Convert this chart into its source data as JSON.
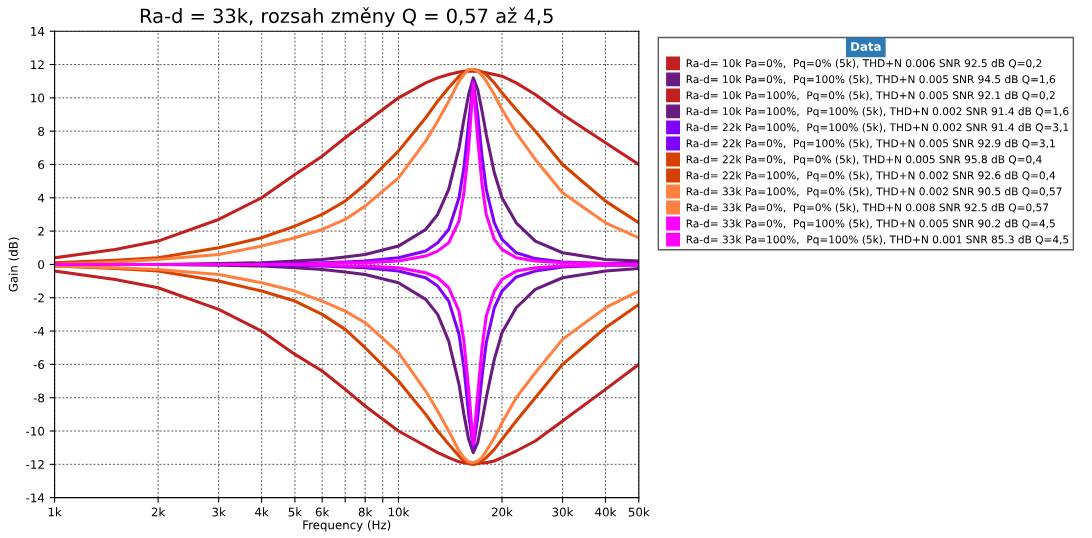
{
  "chart_data": {
    "type": "line",
    "title": "Ra-d = 33k, rozsah změny Q = 0,57 až 4,5",
    "xlabel": "Frequency (Hz)",
    "ylabel": "Gain (dB)",
    "legend_title": "Data",
    "legend": "right",
    "grid": true,
    "log": "x",
    "marker": "none",
    "line_style": "solid",
    "x": [
      1000,
      1500,
      2000,
      3000,
      4000,
      5000,
      6000,
      7000,
      8000,
      10000,
      12000,
      13000,
      14000,
      15000,
      15500,
      16000,
      16500,
      17000,
      17500,
      18000,
      19000,
      20000,
      22000,
      25000,
      30000,
      40000,
      50000
    ],
    "xlim": [
      1000,
      50000
    ],
    "xticks": [
      {
        "value": 1000,
        "label": "1k"
      },
      {
        "value": 2000,
        "label": "2k"
      },
      {
        "value": 3000,
        "label": "3k"
      },
      {
        "value": 4000,
        "label": "4k"
      },
      {
        "value": 5000,
        "label": "5k"
      },
      {
        "value": 6000,
        "label": "6k"
      },
      {
        "value": 7000,
        "label": null
      },
      {
        "value": 8000,
        "label": "8k"
      },
      {
        "value": 9000,
        "label": null
      },
      {
        "value": 10000,
        "label": "10k"
      },
      {
        "value": 20000,
        "label": "20k"
      },
      {
        "value": 30000,
        "label": "30k"
      },
      {
        "value": 40000,
        "label": "40k"
      },
      {
        "value": 50000,
        "label": "50k"
      }
    ],
    "ylim": [
      -14,
      14
    ],
    "yticks": [
      -14,
      -12,
      -10,
      -8,
      -6,
      -4,
      -2,
      0,
      2,
      4,
      6,
      8,
      10,
      12,
      14
    ],
    "series": [
      {
        "name": "Ra-d= 10k Pa=0%,  Pq=0% (5k), THD+N 0.006 SNR 92.5 dB Q=0,2",
        "color": "#c0201f",
        "values": [
          -0.4,
          -0.9,
          -1.4,
          -2.7,
          -4.0,
          -5.4,
          -6.4,
          -7.5,
          -8.5,
          -10.0,
          -10.9,
          -11.3,
          -11.6,
          -11.85,
          -11.9,
          -11.95,
          -12.0,
          -11.95,
          -11.9,
          -11.9,
          -11.8,
          -11.6,
          -11.2,
          -10.6,
          -9.4,
          -7.5,
          -6.0
        ]
      },
      {
        "name": "Ra-d= 10k Pa=0%,  Pq=100% (5k), THD+N 0.005 SNR 94.5 dB Q=1,6",
        "color": "#6a1b80",
        "values": [
          0,
          0,
          0,
          -0.05,
          -0.1,
          -0.2,
          -0.3,
          -0.45,
          -0.6,
          -1.1,
          -2.1,
          -3.0,
          -4.6,
          -7.2,
          -9.0,
          -10.5,
          -11.3,
          -10.7,
          -9.4,
          -8.0,
          -5.7,
          -4.1,
          -2.6,
          -1.5,
          -0.8,
          -0.4,
          -0.25
        ]
      },
      {
        "name": "Ra-d= 10k Pa=100%,  Pq=0% (5k), THD+N 0.005 SNR 92.1 dB Q=0,2",
        "color": "#c0201f",
        "values": [
          0.4,
          0.9,
          1.4,
          2.7,
          4.0,
          5.4,
          6.5,
          7.6,
          8.5,
          10.0,
          10.9,
          11.2,
          11.4,
          11.55,
          11.6,
          11.6,
          11.6,
          11.6,
          11.55,
          11.5,
          11.4,
          11.3,
          10.9,
          10.2,
          9.0,
          7.3,
          6.0
        ]
      },
      {
        "name": "Ra-d= 10k Pa=100%,  Pq=100% (5k), THD+N 0.002 SNR 91.4 dB Q=1,6",
        "color": "#6a1b80",
        "values": [
          0.0,
          0.0,
          0.0,
          0.05,
          0.1,
          0.2,
          0.3,
          0.45,
          0.6,
          1.1,
          2.1,
          3.0,
          4.5,
          7.0,
          8.7,
          10.2,
          11.2,
          10.5,
          9.2,
          7.8,
          5.5,
          4.0,
          2.5,
          1.4,
          0.7,
          0.3,
          0.2
        ]
      },
      {
        "name": "Ra-d= 22k Pa=100%,  Pq=100% (5k), THD+N 0.002 SNR 91.4 dB Q=3,1",
        "color": "#8000ff",
        "values": [
          null,
          null,
          null,
          null,
          0.05,
          0.05,
          0.1,
          0.15,
          0.2,
          0.4,
          0.8,
          1.3,
          2.1,
          4.0,
          5.8,
          8.5,
          11.0,
          9.0,
          6.5,
          4.5,
          2.5,
          1.5,
          0.7,
          0.35,
          0.15,
          0.05,
          0.05
        ]
      },
      {
        "name": "Ra-d= 22k Pa=0%,  Pq=100% (5k), THD+N 0.005 SNR 92.9 dB Q=3,1",
        "color": "#8000ff",
        "values": [
          null,
          null,
          null,
          null,
          -0.05,
          -0.05,
          -0.1,
          -0.15,
          -0.2,
          -0.4,
          -0.8,
          -1.3,
          -2.2,
          -4.2,
          -6.2,
          -9.0,
          -11.0,
          -9.2,
          -6.7,
          -4.7,
          -2.6,
          -1.6,
          -0.75,
          -0.4,
          -0.15,
          -0.05,
          -0.05
        ]
      },
      {
        "name": "Ra-d= 22k Pa=0%,  Pq=0% (5k), THD+N 0.005 SNR 95.8 dB Q=0,4",
        "color": "#d64000",
        "values": [
          -0.1,
          -0.25,
          -0.4,
          -1.0,
          -1.6,
          -2.2,
          -3.0,
          -3.9,
          -5.0,
          -7.0,
          -9.0,
          -10.0,
          -10.8,
          -11.5,
          -11.8,
          -11.95,
          -12.0,
          -11.95,
          -11.8,
          -11.6,
          -11.1,
          -10.5,
          -9.4,
          -8.0,
          -6.0,
          -3.8,
          -2.4
        ]
      },
      {
        "name": "Ra-d= 22k Pa=100%,  Pq=0% (5k), THD+N 0.002 SNR 92.6 dB Q=0,4",
        "color": "#d64000",
        "values": [
          0.1,
          0.25,
          0.4,
          1.0,
          1.6,
          2.3,
          3.0,
          3.8,
          4.8,
          6.8,
          8.8,
          9.8,
          10.6,
          11.3,
          11.5,
          11.7,
          11.7,
          11.65,
          11.55,
          11.4,
          10.9,
          10.3,
          9.3,
          8.0,
          6.0,
          3.8,
          2.5
        ]
      },
      {
        "name": "Ra-d= 33k Pa=100%,  Pq=0% (5k), THD+N 0.002 SNR 90.5 dB Q=0,57",
        "color": "#ff8040",
        "values": [
          0.0,
          0.15,
          0.3,
          0.6,
          1.1,
          1.6,
          2.1,
          2.7,
          3.5,
          5.2,
          7.4,
          8.6,
          9.8,
          11.0,
          11.4,
          11.7,
          11.7,
          11.6,
          11.35,
          11.0,
          10.2,
          9.3,
          7.9,
          6.3,
          4.3,
          2.5,
          1.6
        ]
      },
      {
        "name": "Ra-d= 33k Pa=0%,  Pq=0% (5k), THD+N 0.008 SNR 92.5 dB Q=0,57",
        "color": "#ff8040",
        "values": [
          -0.1,
          -0.2,
          -0.3,
          -0.6,
          -1.1,
          -1.6,
          -2.2,
          -2.8,
          -3.5,
          -5.3,
          -7.6,
          -8.8,
          -10.0,
          -11.2,
          -11.6,
          -11.85,
          -11.9,
          -11.8,
          -11.6,
          -11.2,
          -10.4,
          -9.5,
          -8.0,
          -6.5,
          -4.5,
          -2.6,
          -1.6
        ]
      },
      {
        "name": "Ra-d= 33k Pa=0%,  Pq=100% (5k), THD+N 0.005 SNR 90.2 dB Q=4,5",
        "color": "#ff00ff",
        "values": [
          0,
          0,
          0,
          0,
          0,
          0,
          -0.05,
          -0.1,
          -0.1,
          -0.2,
          -0.5,
          -0.8,
          -1.4,
          -2.8,
          -4.6,
          -7.5,
          -10.8,
          -7.8,
          -5.0,
          -3.1,
          -1.6,
          -0.9,
          -0.4,
          -0.2,
          -0.1,
          -0.05,
          0.0
        ]
      },
      {
        "name": "Ra-d= 33k Pa=100%,  Pq=100% (5k), THD+N 0.001 SNR 85.3 dB Q=4,5",
        "color": "#ff00ff",
        "values": [
          0,
          0,
          0,
          0,
          0,
          0,
          0.05,
          0.1,
          0.1,
          0.2,
          0.5,
          0.8,
          1.3,
          2.6,
          4.3,
          7.0,
          10.9,
          7.5,
          4.8,
          3.0,
          1.5,
          0.9,
          0.4,
          0.2,
          0.1,
          0.05,
          0.0
        ]
      }
    ]
  }
}
